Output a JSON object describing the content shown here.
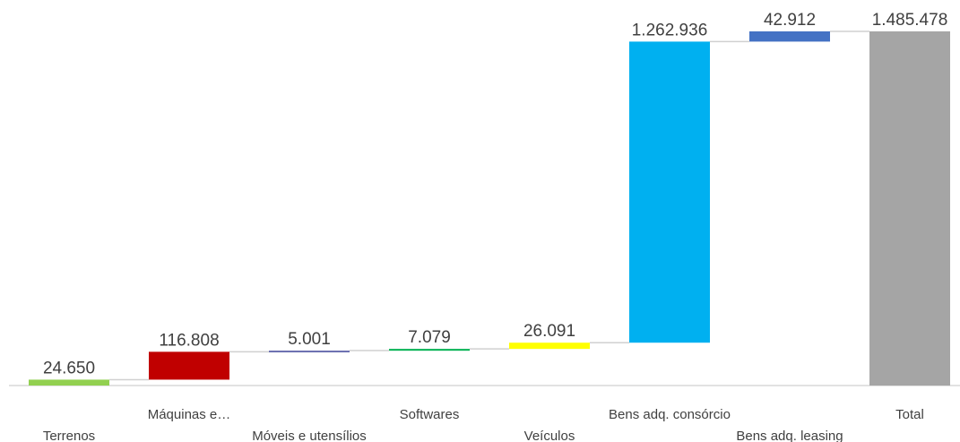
{
  "chart_data": {
    "type": "waterfall",
    "categories": [
      "Terrenos",
      "Máquinas e…",
      "Móveis e utensílios",
      "Softwares",
      "Veículos",
      "Bens adq. consórcio",
      "Bens adq. leasing",
      "Total"
    ],
    "values": [
      24650,
      116808,
      5001,
      7079,
      26091,
      1262936,
      42912,
      1485478
    ],
    "value_labels": [
      "24.650",
      "116.808",
      "5.001",
      "7.079",
      "26.091",
      "1.262.936",
      "42.912",
      "1.485.478"
    ],
    "colors": [
      "#92d050",
      "#c00000",
      "#6a6fb0",
      "#00b050",
      "#ffff00",
      "#00b0f0",
      "#4472c4",
      "#a5a5a5"
    ]
  }
}
